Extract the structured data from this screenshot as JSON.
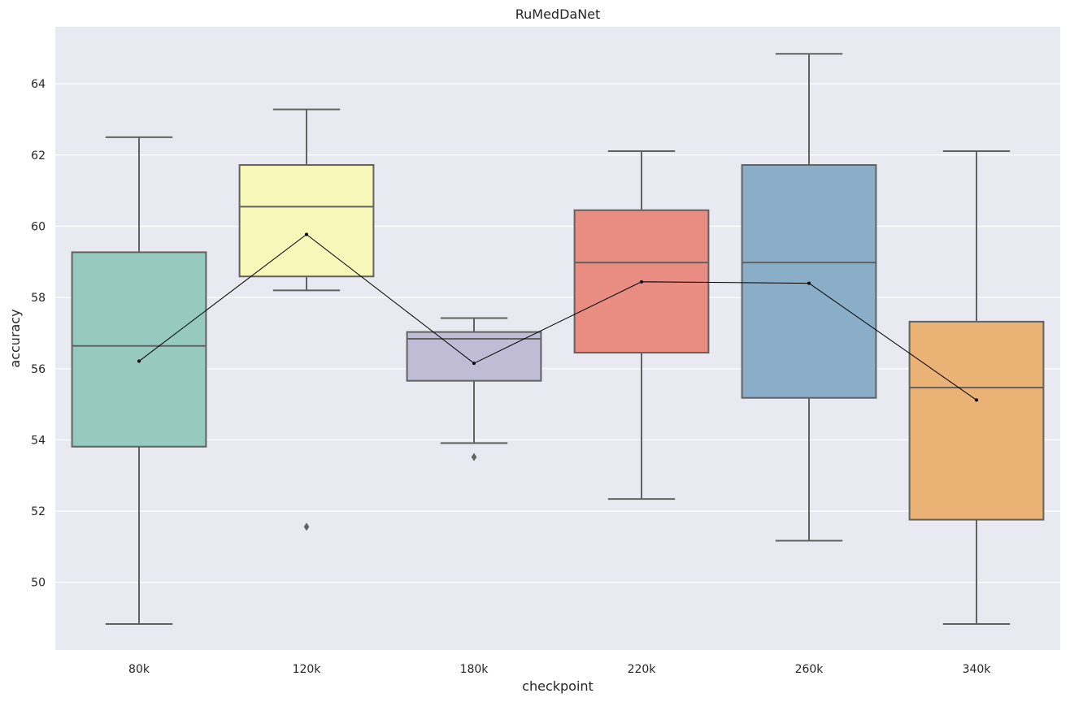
{
  "chart_data": {
    "type": "box",
    "title": "RuMedDaNet",
    "xlabel": "checkpoint",
    "ylabel": "accuracy",
    "ylim": [
      48.1,
      65.6
    ],
    "yticks": [
      50,
      52,
      54,
      56,
      58,
      60,
      62,
      64
    ],
    "grid": true,
    "categories": [
      "80k",
      "120k",
      "180k",
      "220k",
      "260k",
      "340k"
    ],
    "colors": [
      "#96c9c0",
      "#f7f7ba",
      "#c0bcd6",
      "#e98c81",
      "#8aaec8",
      "#ebb276"
    ],
    "boxes": [
      {
        "min": 48.83,
        "q1": 53.81,
        "median": 56.64,
        "q3": 59.27,
        "max": 62.5,
        "outliers": []
      },
      {
        "min": 58.2,
        "q1": 58.59,
        "median": 60.55,
        "q3": 61.72,
        "max": 63.28,
        "outliers": [
          51.56
        ]
      },
      {
        "min": 53.91,
        "q1": 55.66,
        "median": 56.84,
        "q3": 57.03,
        "max": 57.42,
        "outliers": [
          53.52
        ]
      },
      {
        "min": 52.34,
        "q1": 56.45,
        "median": 58.98,
        "q3": 60.45,
        "max": 62.11,
        "outliers": []
      },
      {
        "min": 51.17,
        "q1": 55.18,
        "median": 58.98,
        "q3": 61.72,
        "max": 64.84,
        "outliers": []
      },
      {
        "min": 48.83,
        "q1": 51.76,
        "median": 55.47,
        "q3": 57.32,
        "max": 62.11,
        "outliers": []
      }
    ],
    "mean_line": {
      "values": [
        56.21,
        59.77,
        56.15,
        58.44,
        58.4,
        55.12
      ],
      "color": "#000000"
    }
  }
}
